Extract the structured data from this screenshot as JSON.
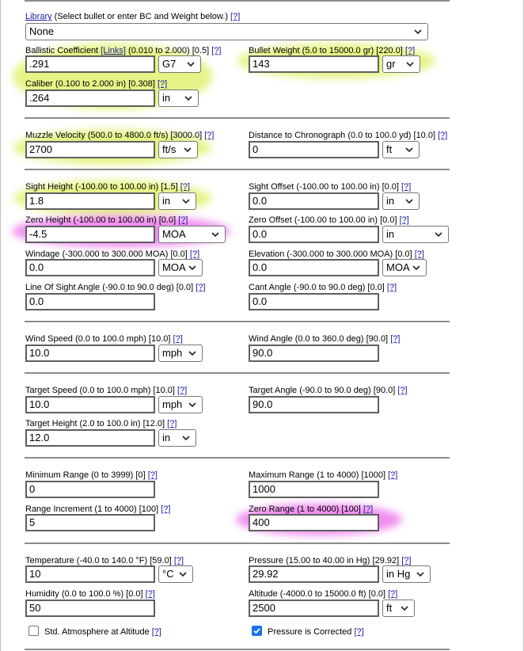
{
  "help": "[?]",
  "library": {
    "link": "Library",
    "text": " (Select bullet or enter BC and Weight below.) ",
    "value": "None"
  },
  "ballistic_coefficient": {
    "label": "Ballistic Coefficient ",
    "link": "[Links]",
    "range": " (0.010 to 2.000) [0.5] ",
    "value": ".291",
    "unit": "G7"
  },
  "bullet_weight": {
    "label": "Bullet Weight (5.0 to 15000.0 gr) [220.0] ",
    "value": "143",
    "unit": "gr"
  },
  "caliber": {
    "label": "Caliber (0.100 to 2.000 in) [0.308] ",
    "value": ".264",
    "unit": "in"
  },
  "muzzle_velocity": {
    "label": "Muzzle Velocity (500.0 to 4800.0 ft/s) [3000.0] ",
    "value": "2700",
    "unit": "ft/s"
  },
  "distance_to_chronograph": {
    "label": "Distance to Chronograph (0.0 to 100.0 yd) [10.0] ",
    "value": "0",
    "unit": "ft"
  },
  "sight_height": {
    "label": "Sight Height (-100.00 to 100.00 in) [1.5] ",
    "value": "1.8",
    "unit": "in"
  },
  "sight_offset": {
    "label": "Sight Offset (-100.00 to 100.00 in) [0.0] ",
    "value": "0.0",
    "unit": "in"
  },
  "zero_height": {
    "label": "Zero Height (-100.00 to 100.00 in) [0.0] ",
    "value": "-4.5",
    "unit": "MOA"
  },
  "zero_offset": {
    "label": "Zero Offset (-100.00 to 100.00 in) [0.0] ",
    "value": "0.0",
    "unit": "in"
  },
  "windage": {
    "label": "Windage (-300.000 to 300.000 MOA) [0.0] ",
    "value": "0.0",
    "unit": "MOA"
  },
  "elevation": {
    "label": "Elevation (-300.000 to 300.000 MOA) [0.0] ",
    "value": "0.0",
    "unit": "MOA"
  },
  "line_of_sight_angle": {
    "label": "Line Of Sight Angle (-90.0 to 90.0 deg) [0.0] ",
    "value": "0.0"
  },
  "cant_angle": {
    "label": "Cant Angle (-90.0 to 90.0 deg) [0.0] ",
    "value": "0.0"
  },
  "wind_speed": {
    "label": "Wind Speed (0.0 to 100.0 mph) [10.0] ",
    "value": "10.0",
    "unit": "mph"
  },
  "wind_angle": {
    "label": "Wind Angle (0.0 to 360.0 deg) [90.0] ",
    "value": "90.0"
  },
  "target_speed": {
    "label": "Target Speed (0.0 to 100.0 mph) [10.0] ",
    "value": "10.0",
    "unit": "mph"
  },
  "target_angle": {
    "label": "Target Angle (-90.0 to 90.0 deg) [90.0] ",
    "value": "90.0"
  },
  "target_height": {
    "label": "Target Height (2.0 to 100.0 in) [12.0] ",
    "value": "12.0",
    "unit": "in"
  },
  "minimum_range": {
    "label": "Minimum Range (0 to 3999) [0] ",
    "value": "0"
  },
  "maximum_range": {
    "label": "Maximum Range (1 to 4000) [1000] ",
    "value": "1000"
  },
  "range_increment": {
    "label": "Range Increment (1 to 4000) [100] ",
    "value": "5"
  },
  "zero_range": {
    "label": "Zero Range (1 to 4000) [100] ",
    "value": "400"
  },
  "temperature": {
    "label": "Temperature (-40.0 to 140.0 °F) [59.0] ",
    "value": "10",
    "unit": "°C"
  },
  "pressure": {
    "label": "Pressure (15.00 to 40.00 in Hg) [29.92] ",
    "value": "29.92",
    "unit": "in Hg"
  },
  "humidity": {
    "label": "Humidity (0.0 to 100.0 %) [0.0] ",
    "value": "50"
  },
  "altitude": {
    "label": "Altitude (-4000.0 to 15000.0 ft) [0.0] ",
    "value": "2500",
    "unit": "ft"
  },
  "std_atmosphere": {
    "label": "Std. Atmosphere at Altitude ",
    "checked": false
  },
  "pressure_corrected": {
    "label": "Pressure is Corrected ",
    "checked": true
  },
  "colors": {
    "highlight_yellow": "#ddee58",
    "highlight_magenta": "#ec6eec",
    "link": "#1a1aa6",
    "checkbox_checked": "#1a73e8"
  }
}
